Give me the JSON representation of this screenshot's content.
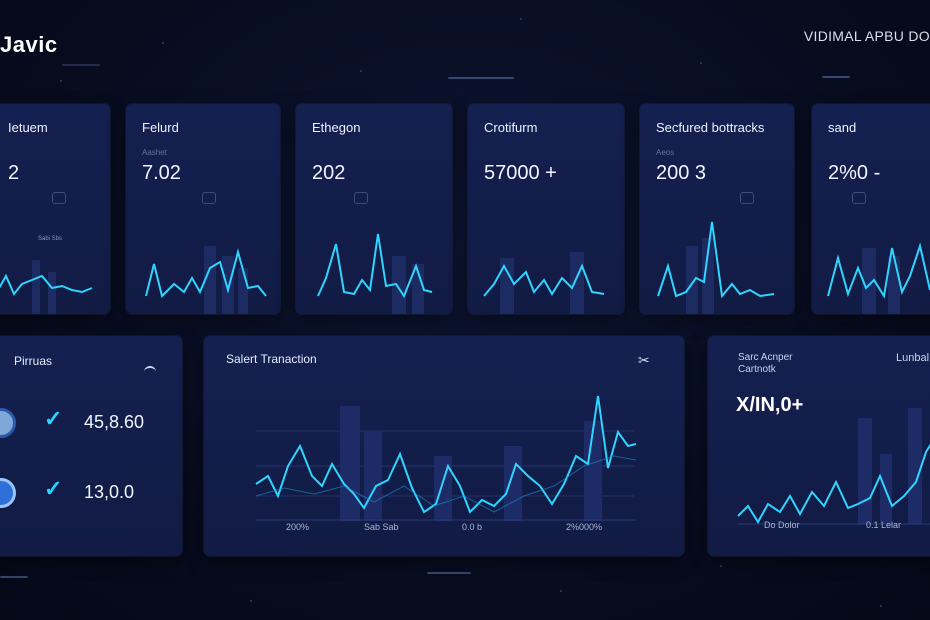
{
  "app": {
    "title": "Javic",
    "top_right": "VIDIMAL APBU DO"
  },
  "kpis": [
    {
      "title": "Ietuem",
      "sub": "",
      "value": "2",
      "mini_a": "",
      "mini_b": "Sabi Sbs"
    },
    {
      "title": "Felurd",
      "sub": "Aashet",
      "value": "7.02",
      "mini_a": "",
      "mini_b": ""
    },
    {
      "title": "Ethegon",
      "sub": "",
      "value": "202",
      "mini_a": "",
      "mini_b": ""
    },
    {
      "title": "Crotifurm",
      "sub": "",
      "value": "57000 +",
      "mini_a": "",
      "mini_b": ""
    },
    {
      "title": "Secfured bottracks",
      "sub": "Aeos",
      "value": "200 3",
      "mini_a": "",
      "mini_b": ""
    },
    {
      "title": "sand",
      "sub": "",
      "value": "2%0 -",
      "mini_a": "",
      "mini_b": ""
    }
  ],
  "payments": {
    "title": "Pirruas",
    "rows": [
      {
        "amount": "45,8.60"
      },
      {
        "amount": "13,0.0"
      }
    ]
  },
  "transaction": {
    "title": "Salert Tranaction",
    "x_labels": [
      "200%",
      "Sab Sab",
      "0.0 b",
      "2%000%"
    ]
  },
  "right_panel": {
    "title": "Sarc Acnper",
    "subtitle": "Cartnotk",
    "value": "X/IN,0+",
    "legend": "Lunbal",
    "x_labels": [
      "Do Dolor",
      "0.1 Lelar"
    ]
  },
  "colors": {
    "accent": "#2fd4ff",
    "card": "#121d47",
    "bg": "#070b1d"
  }
}
